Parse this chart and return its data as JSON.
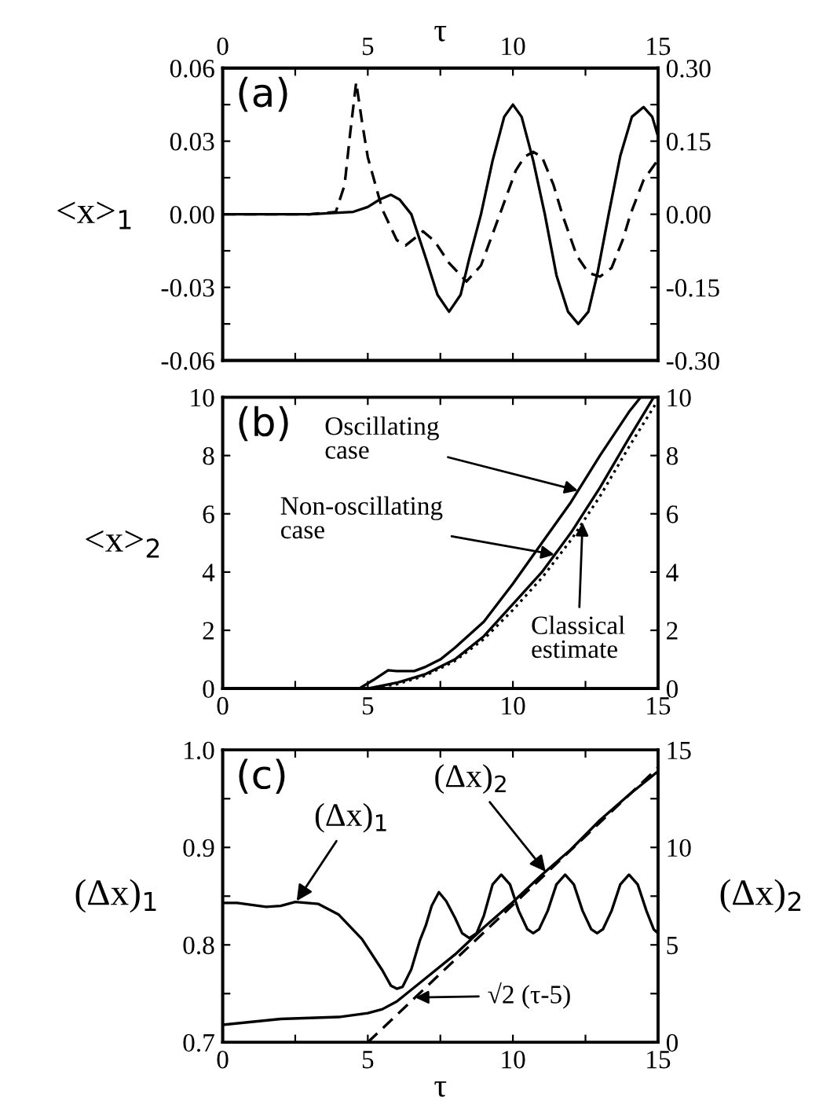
{
  "chart_data": [
    {
      "type": "line",
      "xlabel": "τ",
      "ylabel": "<x>$_{1}$",
      "annotations": [
        "(a)"
      ],
      "xlim": [
        0,
        15
      ],
      "xticks": [
        0,
        {
          "value": 2.5,
          "label": null
        },
        5,
        {
          "value": 7.5,
          "label": null
        },
        10,
        {
          "value": 12.5,
          "label": null
        },
        15
      ],
      "ylim": [
        -0.06,
        0.06
      ],
      "yticks": [
        -0.06,
        {
          "value": -0.045,
          "label": null
        },
        -0.03,
        {
          "value": -0.015,
          "label": null
        },
        {
          "value": 0,
          "label": "0.00"
        },
        {
          "value": 0.015,
          "label": null
        },
        0.03,
        {
          "value": 0.045,
          "label": null
        },
        0.06
      ],
      "y2lim": [
        -0.3,
        0.3
      ],
      "y2ticks": [
        {
          "value": -0.3,
          "label": "-0.30"
        },
        {
          "value": -0.225,
          "label": null
        },
        -0.15,
        {
          "value": -0.075,
          "label": null
        },
        {
          "value": 0,
          "label": "0.00"
        },
        {
          "value": 0.075,
          "label": null
        },
        0.15,
        {
          "value": 0.225,
          "label": null
        },
        {
          "value": 0.3,
          "label": "0.30"
        }
      ],
      "series": [
        {
          "color": "#000000",
          "line_style": "solid",
          "x": [
            0,
            3,
            4.5,
            5.0,
            5.4,
            5.8,
            6.1,
            6.5,
            7.0,
            7.4,
            7.8,
            8.2,
            8.5,
            8.9,
            9.3,
            9.7,
            10.0,
            10.3,
            10.7,
            11.1,
            11.5,
            11.9,
            12.25,
            12.6,
            12.9,
            13.3,
            13.7,
            14.1,
            14.5,
            14.8,
            15
          ],
          "values": [
            0,
            0,
            0.001,
            0.003,
            0.006,
            0.008,
            0.006,
            0,
            -0.018,
            -0.033,
            -0.04,
            -0.033,
            -0.018,
            0,
            0.022,
            0.04,
            0.045,
            0.04,
            0.022,
            0,
            -0.025,
            -0.04,
            -0.045,
            -0.04,
            -0.025,
            0,
            0.024,
            0.04,
            0.044,
            0.04,
            0.032
          ]
        },
        {
          "color": "#000000",
          "line_style": "dashed",
          "axis": "y2",
          "x": [
            0,
            3,
            3.9,
            4.2,
            4.4,
            4.6,
            4.8,
            5.0,
            5.5,
            6.0,
            6.3,
            6.6,
            6.9,
            7.3,
            7.8,
            8.4,
            8.9,
            9.55,
            10.1,
            10.4,
            10.7,
            11.0,
            11.4,
            11.7,
            12.2,
            12.6,
            13.0,
            13.4,
            13.8,
            14.05,
            14.5,
            15
          ],
          "values": [
            0,
            0,
            0.005,
            0.06,
            0.17,
            0.271,
            0.19,
            0.117,
            0.01,
            -0.053,
            -0.064,
            -0.05,
            -0.035,
            -0.055,
            -0.1,
            -0.138,
            -0.105,
            0,
            0.09,
            0.118,
            0.128,
            0.118,
            0.06,
            0,
            -0.085,
            -0.12,
            -0.128,
            -0.11,
            -0.05,
            0,
            0.07,
            0.112
          ]
        }
      ]
    },
    {
      "type": "line",
      "ylabel": "<x>$_{2}$",
      "annotations": [
        "(b)",
        {
          "text": "Oscillating\ncase",
          "x": 12.24,
          "y": 6.8
        },
        {
          "text": "Non-oscillating\ncase",
          "x": 11.43,
          "y": 4.6
        },
        {
          "text": "Classical\nestimate",
          "x": 12.4,
          "y": 5.7
        }
      ],
      "xlim": [
        0,
        15
      ],
      "xticks": [
        0,
        {
          "value": 2.5,
          "label": null
        },
        5,
        {
          "value": 7.5,
          "label": null
        },
        10,
        {
          "value": 12.5,
          "label": null
        },
        15
      ],
      "ylim": [
        0,
        10
      ],
      "yticks": [
        0,
        2,
        4,
        6,
        8,
        10
      ],
      "y2lim": [
        0,
        10
      ],
      "y2ticks": [
        0,
        2,
        4,
        6,
        8,
        10
      ],
      "series": [
        {
          "color": "#000000",
          "line_style": "solid",
          "x": [
            0,
            4.7,
            5.2,
            5.7,
            6.0,
            6.6,
            7.0,
            7.5,
            8,
            9,
            10,
            11,
            12,
            13,
            14,
            14.4
          ],
          "values": [
            0,
            0,
            0.3,
            0.63,
            0.6,
            0.6,
            0.75,
            1.0,
            1.4,
            2.3,
            3.6,
            5.0,
            6.4,
            8.0,
            9.5,
            10
          ]
        },
        {
          "color": "#000000",
          "line_style": "solid",
          "x": [
            0,
            5,
            6,
            7,
            8,
            9,
            10,
            11,
            12,
            13,
            14,
            14.85
          ],
          "values": [
            0,
            0,
            0.2,
            0.5,
            1.0,
            1.8,
            2.9,
            4.0,
            5.35,
            6.9,
            8.6,
            10
          ]
        },
        {
          "color": "#000000",
          "line_style": "dotted",
          "x": [
            0,
            5,
            6,
            7,
            8,
            9,
            10,
            11,
            12,
            13,
            14,
            15
          ],
          "values": [
            0,
            0,
            0.15,
            0.45,
            0.95,
            1.7,
            2.7,
            3.8,
            5.1,
            6.6,
            8.3,
            9.9
          ]
        }
      ]
    },
    {
      "type": "line",
      "xlabel": "τ",
      "ylabel": "(Δx)$_{1}$",
      "y2label": "(Δx)$_{2}$",
      "annotations": [
        "(c)",
        {
          "text": "(Δx)$_{1}$",
          "x": 2.55,
          "y": 0.845
        },
        {
          "text": "(Δx)$_{2}$",
          "x": 11.13,
          "y": 0.875
        },
        {
          "text": "√2 (τ-5)",
          "x": 6.64,
          "y": 0.746
        }
      ],
      "xlim": [
        0,
        15
      ],
      "xticks": [
        0,
        {
          "value": 2.5,
          "label": null
        },
        5,
        {
          "value": 7.5,
          "label": null
        },
        10,
        {
          "value": 12.5,
          "label": null
        },
        15
      ],
      "ylim": [
        0.7,
        1.0
      ],
      "yticks": [
        0.7,
        {
          "value": 0.75,
          "label": null
        },
        0.8,
        {
          "value": 0.85,
          "label": null
        },
        0.9,
        {
          "value": 0.95,
          "label": null
        },
        {
          "value": 1,
          "label": "1.0"
        }
      ],
      "y2lim": [
        0,
        15
      ],
      "y2ticks": [
        0,
        {
          "value": 2.5,
          "label": null
        },
        5,
        {
          "value": 7.5,
          "label": null
        },
        10,
        {
          "value": 12.5,
          "label": null
        },
        15
      ],
      "series": [
        {
          "color": "#000000",
          "line_style": "solid",
          "x": [
            0,
            0.5,
            1,
            1.5,
            2,
            2.5,
            3.3,
            4,
            4.8,
            5.5,
            5.8,
            6.0,
            6.2,
            6.5,
            6.8,
            7.0,
            7.2,
            7.45,
            7.7,
            8.0,
            8.25,
            8.5,
            8.75,
            9.0,
            9.3,
            9.6,
            9.9,
            10.2,
            10.5,
            10.7,
            10.9,
            11.2,
            11.5,
            11.8,
            12.1,
            12.4,
            12.7,
            12.9,
            13.1,
            13.4,
            13.7,
            14.0,
            14.3,
            14.6,
            14.85,
            15
          ],
          "values": [
            0.843,
            0.843,
            0.841,
            0.839,
            0.84,
            0.844,
            0.842,
            0.831,
            0.806,
            0.774,
            0.758,
            0.755,
            0.757,
            0.775,
            0.805,
            0.82,
            0.84,
            0.854,
            0.845,
            0.828,
            0.812,
            0.807,
            0.812,
            0.83,
            0.862,
            0.872,
            0.862,
            0.835,
            0.816,
            0.812,
            0.816,
            0.835,
            0.862,
            0.872,
            0.862,
            0.835,
            0.816,
            0.812,
            0.816,
            0.835,
            0.862,
            0.872,
            0.862,
            0.835,
            0.816,
            0.812
          ]
        },
        {
          "color": "#000000",
          "line_style": "solid",
          "axis": "y2",
          "x": [
            0,
            2,
            4,
            5,
            5.5,
            6,
            7,
            8,
            9,
            10,
            11,
            12,
            13,
            14,
            15
          ],
          "values": [
            0.9,
            1.2,
            1.3,
            1.5,
            1.7,
            2.1,
            3.3,
            4.5,
            5.9,
            7.2,
            8.6,
            9.9,
            11.4,
            12.7,
            13.9
          ]
        },
        {
          "color": "#000000",
          "line_style": "dashed",
          "axis": "y2",
          "x": [
            5,
            15
          ],
          "values": [
            0,
            14.1
          ]
        }
      ]
    }
  ]
}
